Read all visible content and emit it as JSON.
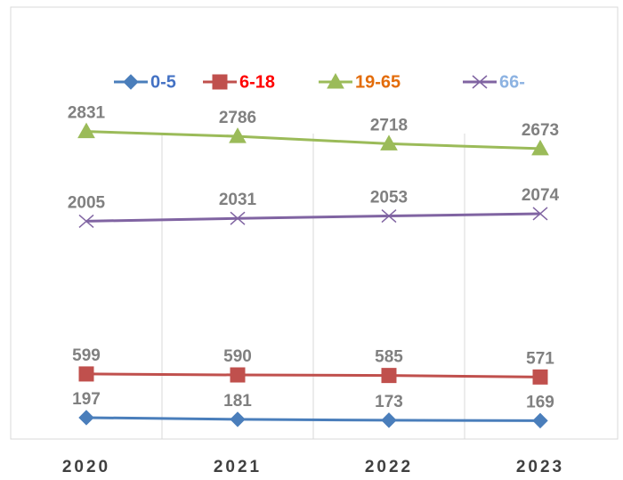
{
  "chart_data": {
    "type": "line",
    "categories": [
      "2020",
      "2021",
      "2022",
      "2023"
    ],
    "ylim": [
      0,
      3500
    ],
    "series": [
      {
        "name": "0-5",
        "color": "#4a7ebb",
        "legend_text_color": "#4472c4",
        "marker": "diamond",
        "values": [
          197,
          181,
          173,
          169
        ]
      },
      {
        "name": "6-18",
        "color": "#c0504d",
        "legend_text_color": "#ff0000",
        "marker": "square",
        "values": [
          599,
          590,
          585,
          571
        ]
      },
      {
        "name": "19-65",
        "color": "#9bbb59",
        "legend_text_color": "#e36c0a",
        "marker": "triangle",
        "values": [
          2831,
          2786,
          2718,
          2673
        ]
      },
      {
        "name": "66-",
        "color": "#8064a2",
        "legend_text_color": "#8db3e2",
        "marker": "x",
        "values": [
          2005,
          2031,
          2053,
          2074
        ]
      }
    ]
  }
}
